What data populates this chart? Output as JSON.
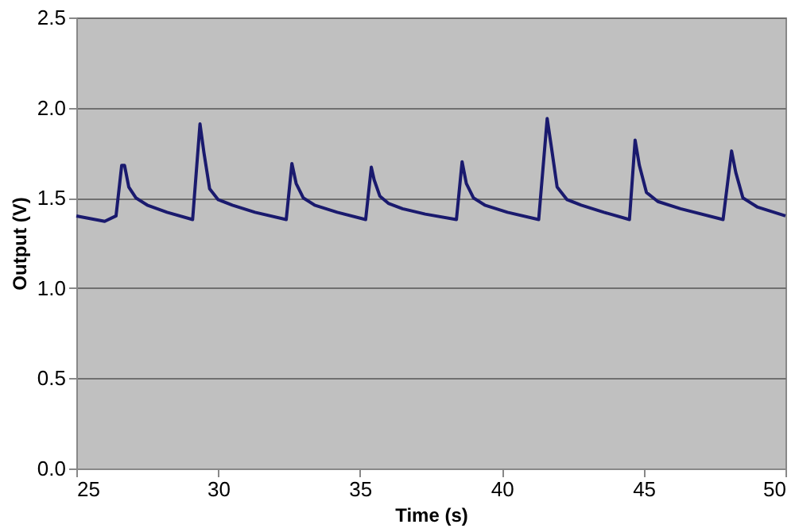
{
  "chart_data": {
    "type": "line",
    "xlabel": "Time (s)",
    "ylabel": "Output (V)",
    "xlim": [
      25,
      50
    ],
    "xticks": [
      25,
      30,
      35,
      40,
      45,
      50
    ],
    "ylim": [
      0,
      2.5
    ],
    "yticks": [
      {
        "value": 0,
        "label": "0.0"
      },
      {
        "value": 0.5,
        "label": "0.5"
      },
      {
        "value": 1,
        "label": "1.0"
      },
      {
        "value": 1.5,
        "label": "1.5"
      },
      {
        "value": 2,
        "label": "2.0"
      },
      {
        "value": 2.5,
        "label": "2.5"
      }
    ],
    "grid": "y",
    "marker": "none",
    "line_style": "solid",
    "series": [
      {
        "color": "#1a1a6e",
        "x": [
          25,
          26,
          26.4,
          26.6,
          26.7,
          26.85,
          27.1,
          27.5,
          28.2,
          29.1,
          29.36,
          29.5,
          29.7,
          30.0,
          30.5,
          31.3,
          32.4,
          32.6,
          32.75,
          33.0,
          33.4,
          34.2,
          35.2,
          35.4,
          35.5,
          35.7,
          36.0,
          36.5,
          37.3,
          38.4,
          38.6,
          38.75,
          39.0,
          39.4,
          40.2,
          41.3,
          41.6,
          41.75,
          41.95,
          42.3,
          42.8,
          43.6,
          44.5,
          44.7,
          44.85,
          45.1,
          45.5,
          46.3,
          47.8,
          48.1,
          48.25,
          48.5,
          49.0,
          50
        ],
        "values": [
          1.4,
          1.37,
          1.4,
          1.68,
          1.68,
          1.56,
          1.5,
          1.46,
          1.42,
          1.38,
          1.91,
          1.75,
          1.55,
          1.49,
          1.46,
          1.42,
          1.38,
          1.69,
          1.58,
          1.5,
          1.46,
          1.42,
          1.38,
          1.67,
          1.6,
          1.51,
          1.47,
          1.44,
          1.41,
          1.38,
          1.7,
          1.58,
          1.5,
          1.46,
          1.42,
          1.38,
          1.94,
          1.78,
          1.56,
          1.49,
          1.46,
          1.42,
          1.38,
          1.82,
          1.68,
          1.53,
          1.48,
          1.44,
          1.38,
          1.76,
          1.64,
          1.5,
          1.45,
          1.4
        ]
      }
    ]
  }
}
